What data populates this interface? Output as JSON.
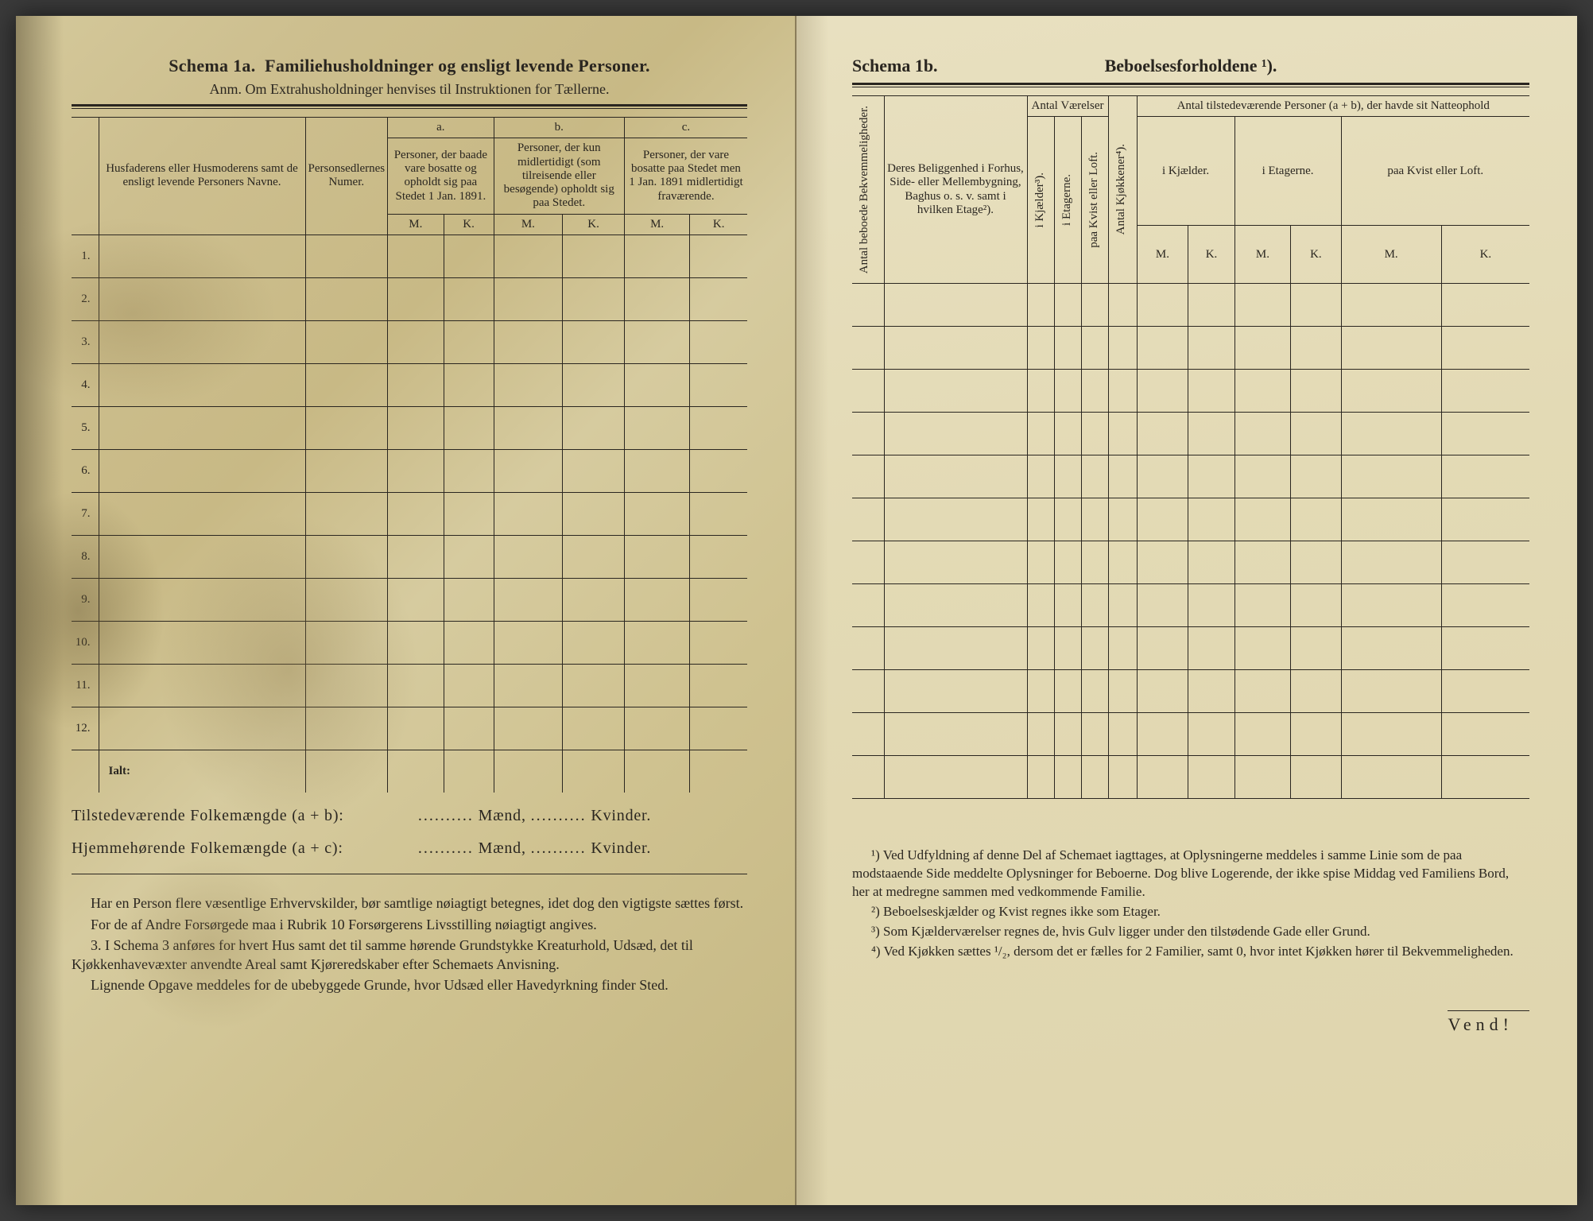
{
  "left": {
    "schemaLabel": "Schema 1a.",
    "schemaTitle": "Familiehusholdninger og ensligt levende Personer.",
    "subnote": "Anm. Om Extrahusholdninger henvises til Instruktionen for Tællerne.",
    "col1": "Husfaderens eller Husmoderens samt de ensligt levende Personers Navne.",
    "col2": "Personsedlernes Numer.",
    "groupA": "a.",
    "groupAText": "Personer, der baade vare bosatte og opholdt sig paa Stedet 1 Jan. 1891.",
    "groupB": "b.",
    "groupBText": "Personer, der kun midlertidigt (som tilreisende eller besøgende) opholdt sig paa Stedet.",
    "groupC": "c.",
    "groupCText": "Personer, der vare bosatte paa Stedet men 1 Jan. 1891 midlertidigt fraværende.",
    "mk": {
      "m": "M.",
      "k": "K."
    },
    "ialt": "Ialt:",
    "sum1": "Tilstedeværende Folkemængde (a + b):",
    "sum2": "Hjemmehørende Folkemængde (a + c):",
    "maend": "Mænd,",
    "kvinder": "Kvinder.",
    "note1": "Har en Person flere væsentlige Erhvervskilder, bør samtlige nøiagtigt betegnes, idet dog den vigtigste sættes først.",
    "note2": "For de af Andre Forsørgede maa i Rubrik 10 Forsørgerens Livsstilling nøiagtigt angives.",
    "note3a": "3. I Schema 3 anføres for hvert Hus samt det til samme hørende Grundstykke Kreaturhold, Udsæd, det til Kjøkkenhavevæxter anvendte Areal samt Kjøreredskaber efter Schemaets Anvisning.",
    "note3b": "Lignende Opgave meddeles for de ubebyggede Grunde, hvor Udsæd eller Havedyrkning finder Sted."
  },
  "right": {
    "schemaLabel": "Schema 1b.",
    "schemaTitle": "Beboelsesforholdene ¹).",
    "vcol1": "Antal beboede Bekvemmeligheder.",
    "col2": "Deres Beliggenhed i Forhus, Side- eller Mellembygning, Baghus o. s. v. samt i hvilken Etage²).",
    "groupRooms": "Antal Værelser",
    "vcol3": "i Kjælder³).",
    "vcol4": "i Etagerne.",
    "vcol5": "paa Kvist eller Loft.",
    "vcol6": "Antal Kjøkkener⁴).",
    "groupPersons": "Antal tilstedeværende Personer (a + b), der havde sit Natteophold",
    "sub1": "i Kjælder.",
    "sub2": "i Etagerne.",
    "sub3": "paa Kvist eller Loft.",
    "mk": {
      "m": "M.",
      "k": "K."
    },
    "fn1": "¹) Ved Udfyldning af denne Del af Schemaet iagttages, at Oplysningerne meddeles i samme Linie som de paa modstaaende Side meddelte Oplysninger for Beboerne. Dog blive Logerende, der ikke spise Middag ved Familiens Bord, her at medregne sammen med vedkommende Familie.",
    "fn2": "²) Beboelseskjælder og Kvist regnes ikke som Etager.",
    "fn3": "³) Som Kjælderværelser regnes de, hvis Gulv ligger under den tilstødende Gade eller Grund.",
    "fn4": "⁴) Ved Kjøkken sættes ¹/₂, dersom det er fælles for 2 Familier, samt 0, hvor intet Kjøkken hører til Bekvemmeligheden.",
    "vend": "Vend!"
  },
  "rowCount": 12
}
